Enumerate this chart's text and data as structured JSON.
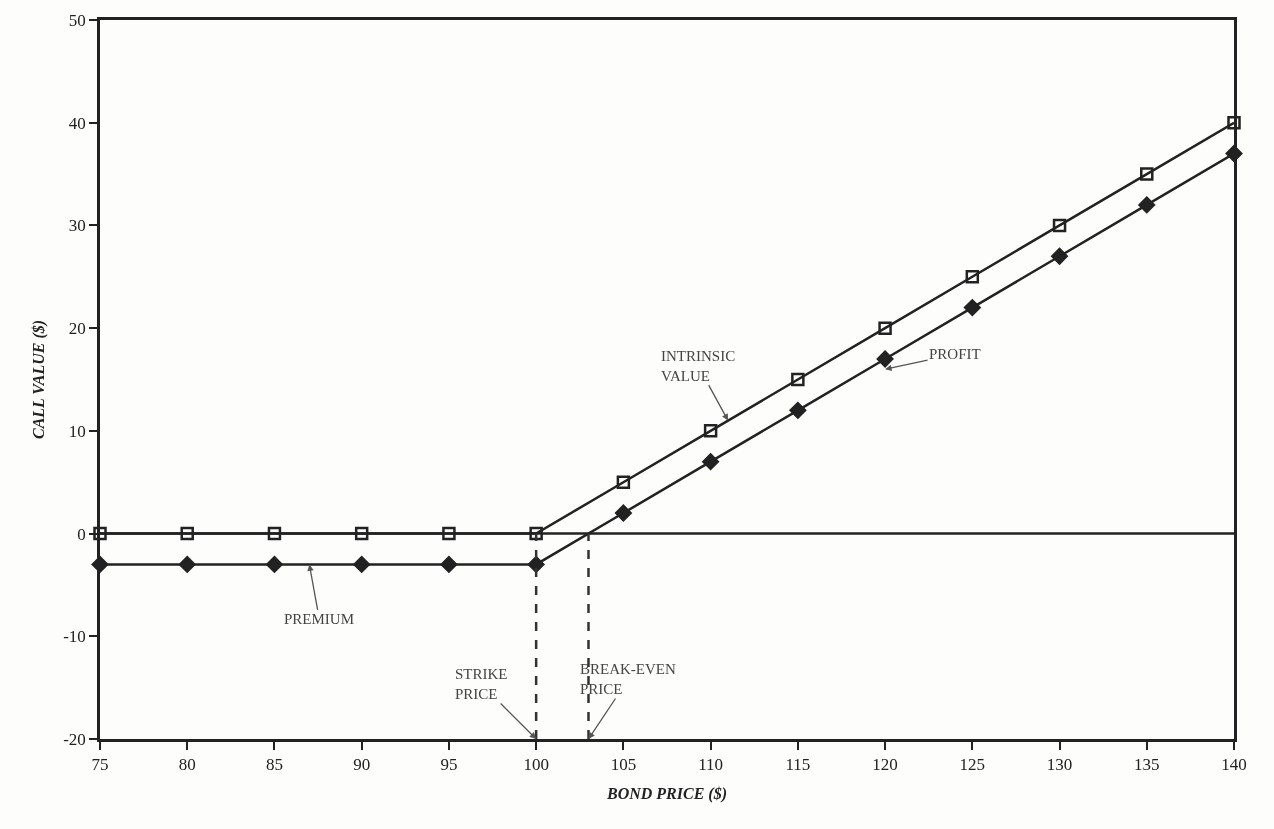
{
  "chart_data": {
    "type": "line",
    "xlabel": "BOND PRICE ($)",
    "ylabel": "CALL VALUE ($)",
    "x": [
      75,
      80,
      85,
      90,
      95,
      100,
      105,
      110,
      115,
      120,
      125,
      130,
      135,
      140
    ],
    "series": [
      {
        "color": "#222222",
        "marker": "square",
        "values": [
          0,
          0,
          0,
          0,
          0,
          0,
          5,
          10,
          15,
          20,
          25,
          30,
          35,
          40
        ]
      },
      {
        "color": "#222222",
        "marker": "diamond",
        "values": [
          -3,
          -3,
          -3,
          -3,
          -3,
          -3,
          2,
          7,
          12,
          17,
          22,
          27,
          32,
          37
        ]
      }
    ],
    "xlim": [
      75,
      140
    ],
    "xticks": [
      75,
      80,
      85,
      90,
      95,
      100,
      105,
      110,
      115,
      120,
      125,
      130,
      135,
      140
    ],
    "ylim": [
      -20,
      50
    ],
    "yticks": [
      -20,
      -10,
      0,
      10,
      20,
      30,
      40,
      50
    ],
    "annotations": [
      {
        "text": "INTRINSIC\nVALUE",
        "x": 111,
        "y": 11
      },
      {
        "text": "PROFIT",
        "x": 120,
        "y": 16
      },
      {
        "text": "PREMIUM",
        "x": 87,
        "y": -3
      },
      {
        "text": "STRIKE\nPRICE",
        "x": 100,
        "y": -20
      },
      {
        "text": "BREAK-EVEN\nPRICE",
        "x": 103,
        "y": -20
      }
    ],
    "ref_lines": [
      {
        "axis": "y",
        "value": 0,
        "color": "#222222"
      },
      {
        "axis": "x",
        "value": 100,
        "color": "#333333",
        "line_style": "dashed"
      },
      {
        "axis": "x",
        "value": 103,
        "color": "#333333",
        "line_style": "dashed"
      }
    ]
  }
}
